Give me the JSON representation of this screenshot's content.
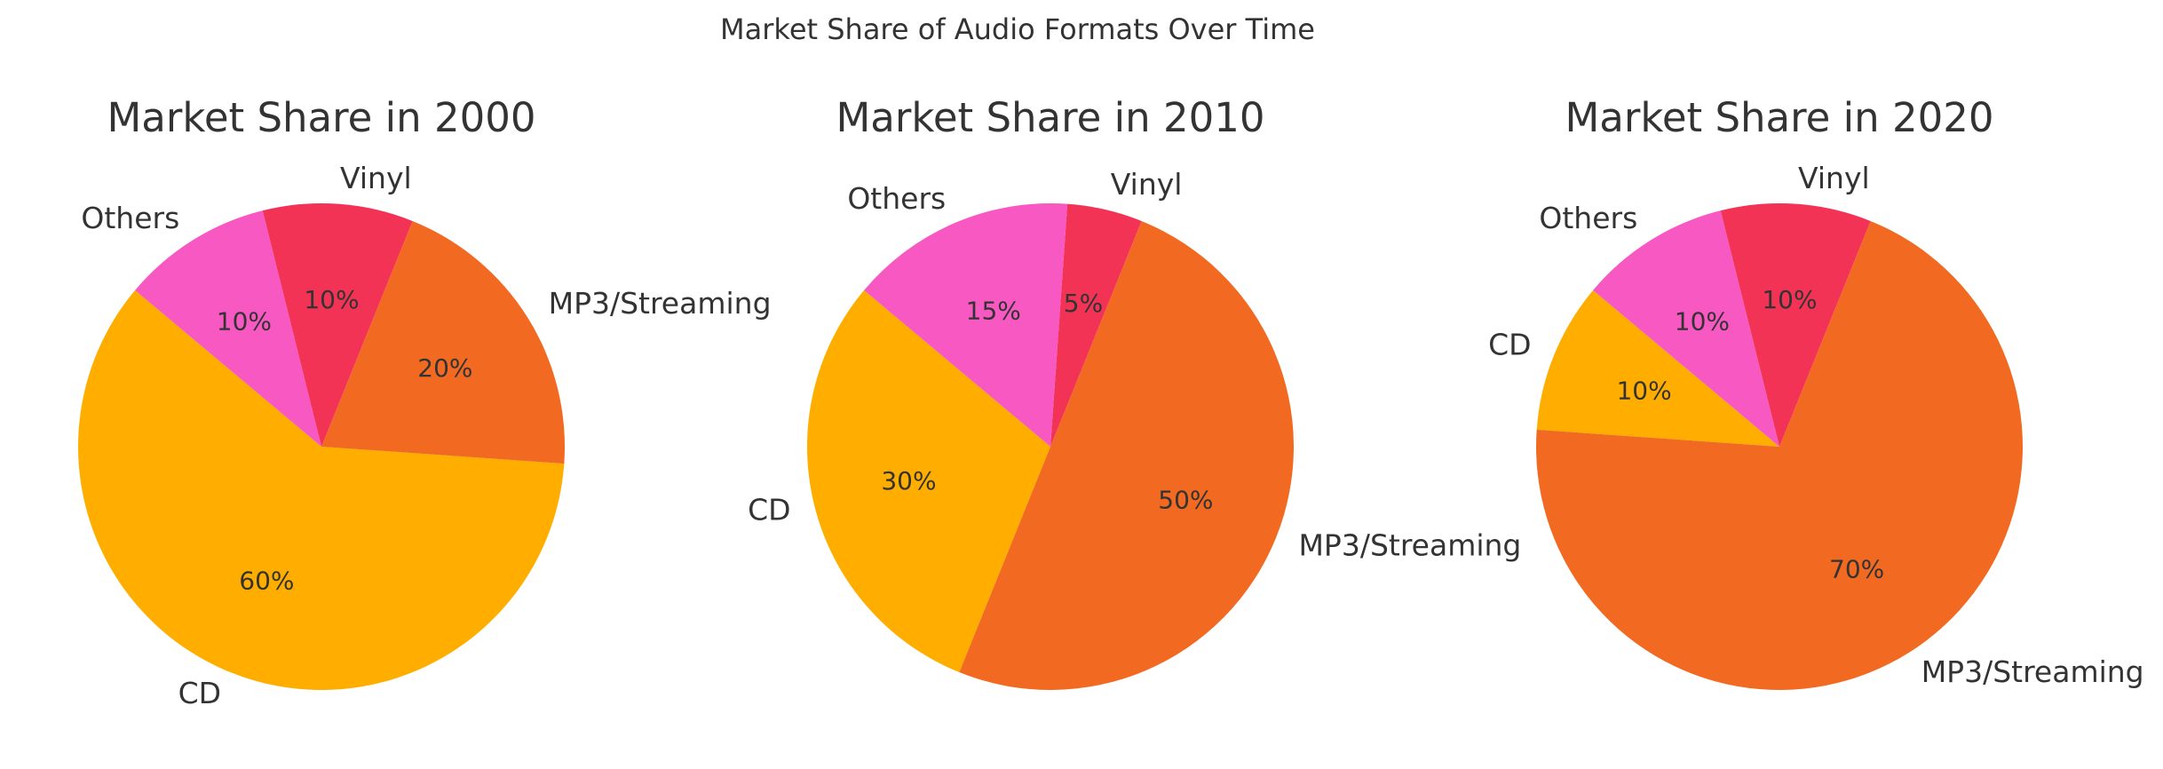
{
  "colors": {
    "CD": "#FFAE00",
    "MP3/Streaming": "#F26A22",
    "Vinyl": "#F23355",
    "Others": "#F758C1",
    "text": "#333333"
  },
  "chart_data": {
    "type": "pie",
    "title": "Market Share of Audio Formats Over Time",
    "charts": [
      {
        "title": "Market Share in 2000",
        "slices": [
          {
            "label": "CD",
            "value": 60,
            "pct_label": "60%"
          },
          {
            "label": "MP3/Streaming",
            "value": 20,
            "pct_label": "20%"
          },
          {
            "label": "Vinyl",
            "value": 10,
            "pct_label": "10%"
          },
          {
            "label": "Others",
            "value": 10,
            "pct_label": "10%"
          }
        ]
      },
      {
        "title": "Market Share in 2010",
        "slices": [
          {
            "label": "CD",
            "value": 30,
            "pct_label": "30%"
          },
          {
            "label": "MP3/Streaming",
            "value": 50,
            "pct_label": "50%"
          },
          {
            "label": "Vinyl",
            "value": 5,
            "pct_label": "5%"
          },
          {
            "label": "Others",
            "value": 15,
            "pct_label": "15%"
          }
        ]
      },
      {
        "title": "Market Share in 2020",
        "slices": [
          {
            "label": "CD",
            "value": 10,
            "pct_label": "10%"
          },
          {
            "label": "MP3/Streaming",
            "value": 70,
            "pct_label": "70%"
          },
          {
            "label": "Vinyl",
            "value": 10,
            "pct_label": "10%"
          },
          {
            "label": "Others",
            "value": 10,
            "pct_label": "10%"
          }
        ]
      }
    ]
  }
}
